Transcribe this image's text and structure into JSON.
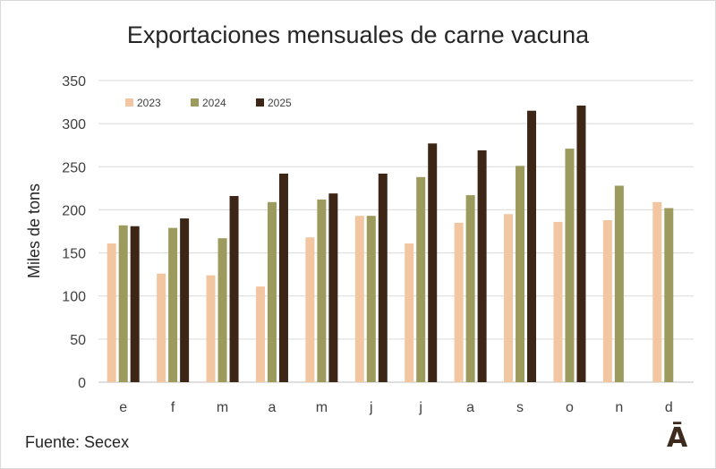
{
  "chart_data": {
    "type": "bar",
    "title": "Exportaciones mensuales de carne vacuna",
    "ylabel": "Miles de tons",
    "xlabel": "",
    "ylim": [
      0,
      350
    ],
    "yticks": [
      0,
      50,
      100,
      150,
      200,
      250,
      300,
      350
    ],
    "categories": [
      "e",
      "f",
      "m",
      "a",
      "m",
      "j",
      "j",
      "a",
      "s",
      "o",
      "n",
      "d"
    ],
    "grid": true,
    "legend_position": "top-left",
    "series": [
      {
        "name": "2023",
        "color": "#f2c6a0",
        "values": [
          161,
          126,
          124,
          111,
          168,
          193,
          161,
          185,
          195,
          186,
          188,
          209
        ]
      },
      {
        "name": "2024",
        "color": "#9c9a5c",
        "values": [
          182,
          179,
          167,
          209,
          212,
          193,
          238,
          217,
          251,
          271,
          228,
          202
        ]
      },
      {
        "name": "2025",
        "color": "#3d2616",
        "values": [
          181,
          190,
          216,
          242,
          219,
          242,
          277,
          269,
          315,
          321,
          null,
          null
        ]
      }
    ]
  },
  "footer": {
    "source": "Fuente: Secex",
    "logo_text": "Ā"
  }
}
